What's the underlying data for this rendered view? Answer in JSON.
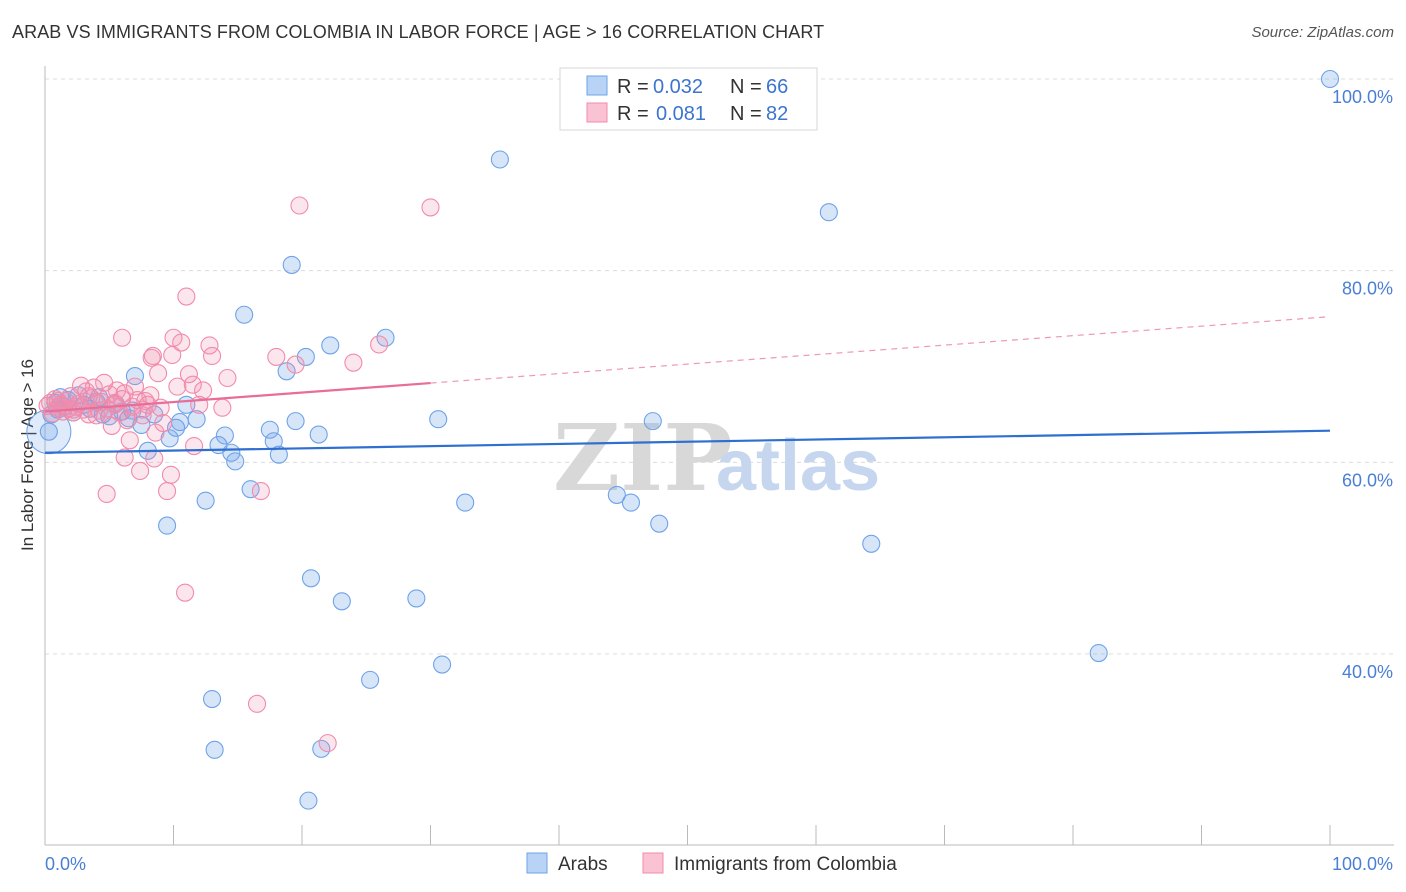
{
  "title": "ARAB VS IMMIGRANTS FROM COLOMBIA IN LABOR FORCE | AGE > 16 CORRELATION CHART",
  "source": "Source: ZipAtlas.com",
  "watermark": {
    "zip": "ZIP",
    "atlas": "atlas"
  },
  "legend": {
    "rows": [
      {
        "r_label": "R =",
        "r_value": "0.032",
        "n_label": "N =",
        "n_value": "66"
      },
      {
        "r_label": "R =",
        "r_value": "0.081",
        "n_label": "N =",
        "n_value": "82"
      }
    ]
  },
  "chart_data": {
    "type": "scatter",
    "title": "ARAB VS IMMIGRANTS FROM COLOMBIA IN LABOR FORCE | AGE > 16 CORRELATION CHART",
    "xlabel": "",
    "ylabel": "In Labor Force | Age > 16",
    "xlim": [
      0,
      100
    ],
    "ylim": [
      20,
      102
    ],
    "x_tick_labels": [
      "0.0%",
      "100.0%"
    ],
    "y_ticks": [
      40,
      60,
      80,
      100
    ],
    "y_tick_labels": [
      "40.0%",
      "60.0%",
      "80.0%",
      "100.0%"
    ],
    "colors": {
      "arabs": "#6fa3e8",
      "colombia": "#f28bab",
      "arabs_line": "#2f6fcf",
      "colombia_line": "#e86d98",
      "axis_text": "#4a7fd4"
    },
    "series": [
      {
        "name": "Arabs",
        "r": 0.032,
        "n": 66,
        "trend": {
          "x0": 0,
          "y0": 61.0,
          "x1": 100,
          "y1": 63.3,
          "solid_to": 100
        },
        "points": [
          [
            0.3,
            63.2
          ],
          [
            0.5,
            65.0
          ],
          [
            0.8,
            66.2
          ],
          [
            1.0,
            65.5
          ],
          [
            1.2,
            66.8
          ],
          [
            1.5,
            65.8
          ],
          [
            1.8,
            66.5
          ],
          [
            2.2,
            65.2
          ],
          [
            2.6,
            67.0
          ],
          [
            3.0,
            66.0
          ],
          [
            3.5,
            65.6
          ],
          [
            4.0,
            66.3
          ],
          [
            4.5,
            65.0
          ],
          [
            5.0,
            64.8
          ],
          [
            5.5,
            66.1
          ],
          [
            6.0,
            65.3
          ],
          [
            6.5,
            64.6
          ],
          [
            7.0,
            69.0
          ],
          [
            7.5,
            63.9
          ],
          [
            8.0,
            61.2
          ],
          [
            8.5,
            65.0
          ],
          [
            9.5,
            53.4
          ],
          [
            10.2,
            63.6
          ],
          [
            10.5,
            64.2
          ],
          [
            11.0,
            66.0
          ],
          [
            11.8,
            64.5
          ],
          [
            12.5,
            56.0
          ],
          [
            13.5,
            61.8
          ],
          [
            14.0,
            62.8
          ],
          [
            14.5,
            61.0
          ],
          [
            14.8,
            60.1
          ],
          [
            15.5,
            75.4
          ],
          [
            16.0,
            57.2
          ],
          [
            17.5,
            63.4
          ],
          [
            17.8,
            62.2
          ],
          [
            18.2,
            60.8
          ],
          [
            18.8,
            69.5
          ],
          [
            19.5,
            64.3
          ],
          [
            19.2,
            80.6
          ],
          [
            20.3,
            71.0
          ],
          [
            20.7,
            47.9
          ],
          [
            21.3,
            62.9
          ],
          [
            22.2,
            72.2
          ],
          [
            23.1,
            45.5
          ],
          [
            25.3,
            37.3
          ],
          [
            26.5,
            73.0
          ],
          [
            28.9,
            45.8
          ],
          [
            30.6,
            64.5
          ],
          [
            30.9,
            38.9
          ],
          [
            32.7,
            55.8
          ],
          [
            35.4,
            91.6
          ],
          [
            44.5,
            56.6
          ],
          [
            45.6,
            55.8
          ],
          [
            47.3,
            64.3
          ],
          [
            47.8,
            53.6
          ],
          [
            61.0,
            86.1
          ],
          [
            64.3,
            51.5
          ],
          [
            82.0,
            40.1
          ],
          [
            100.0,
            100.0
          ],
          [
            13.2,
            30.0
          ],
          [
            13.0,
            35.3
          ],
          [
            21.5,
            30.1
          ],
          [
            20.5,
            24.7
          ],
          [
            4.2,
            66.8
          ],
          [
            9.7,
            62.5
          ],
          [
            6.8,
            65.4
          ]
        ]
      },
      {
        "name": "Immigrants from Colombia",
        "r": 0.081,
        "n": 82,
        "trend": {
          "x0": 0,
          "y0": 65.3,
          "x1": 100,
          "y1": 75.2,
          "solid_to": 30
        },
        "points": [
          [
            0.2,
            65.9
          ],
          [
            0.4,
            66.2
          ],
          [
            0.6,
            65.1
          ],
          [
            0.8,
            66.6
          ],
          [
            1.0,
            65.7
          ],
          [
            1.2,
            66.0
          ],
          [
            1.4,
            65.3
          ],
          [
            1.6,
            66.4
          ],
          [
            1.8,
            65.6
          ],
          [
            2.0,
            66.9
          ],
          [
            2.2,
            65.2
          ],
          [
            2.4,
            65.8
          ],
          [
            2.6,
            66.1
          ],
          [
            2.8,
            68.0
          ],
          [
            3.0,
            65.5
          ],
          [
            3.2,
            67.4
          ],
          [
            3.4,
            65.0
          ],
          [
            3.6,
            66.7
          ],
          [
            3.8,
            67.8
          ],
          [
            4.0,
            64.9
          ],
          [
            4.2,
            65.4
          ],
          [
            4.4,
            66.3
          ],
          [
            4.6,
            68.3
          ],
          [
            4.8,
            65.6
          ],
          [
            5.0,
            67.1
          ],
          [
            5.2,
            63.8
          ],
          [
            5.4,
            66.0
          ],
          [
            5.6,
            67.5
          ],
          [
            5.8,
            65.2
          ],
          [
            6.0,
            66.6
          ],
          [
            6.2,
            67.2
          ],
          [
            6.4,
            64.4
          ],
          [
            6.6,
            62.3
          ],
          [
            6.8,
            65.8
          ],
          [
            7.0,
            67.9
          ],
          [
            7.2,
            66.5
          ],
          [
            7.4,
            59.1
          ],
          [
            7.6,
            64.9
          ],
          [
            7.8,
            66.4
          ],
          [
            8.0,
            66.0
          ],
          [
            8.2,
            67.0
          ],
          [
            8.4,
            71.1
          ],
          [
            8.6,
            63.1
          ],
          [
            8.8,
            69.3
          ],
          [
            9.0,
            65.7
          ],
          [
            9.2,
            64.1
          ],
          [
            9.5,
            57.0
          ],
          [
            9.8,
            58.7
          ],
          [
            10.0,
            73.0
          ],
          [
            10.3,
            67.9
          ],
          [
            10.6,
            72.5
          ],
          [
            10.9,
            46.4
          ],
          [
            11.0,
            77.3
          ],
          [
            11.2,
            69.2
          ],
          [
            11.5,
            68.1
          ],
          [
            12.0,
            66.0
          ],
          [
            12.3,
            67.5
          ],
          [
            12.8,
            72.2
          ],
          [
            13.0,
            71.1
          ],
          [
            13.8,
            65.7
          ],
          [
            14.2,
            68.8
          ],
          [
            16.5,
            34.8
          ],
          [
            16.8,
            57.0
          ],
          [
            18.0,
            71.0
          ],
          [
            19.5,
            70.2
          ],
          [
            19.8,
            86.8
          ],
          [
            22.0,
            30.7
          ],
          [
            24.0,
            70.4
          ],
          [
            26.0,
            72.3
          ],
          [
            30.0,
            86.6
          ],
          [
            4.8,
            56.7
          ],
          [
            6.0,
            73.0
          ],
          [
            8.5,
            60.4
          ],
          [
            8.3,
            70.9
          ],
          [
            6.2,
            60.5
          ],
          [
            2.2,
            65.5
          ],
          [
            1.0,
            66.4
          ],
          [
            3.4,
            66.9
          ],
          [
            7.6,
            65.5
          ],
          [
            5.4,
            66.2
          ],
          [
            9.9,
            71.2
          ],
          [
            11.6,
            61.7
          ]
        ]
      }
    ]
  }
}
